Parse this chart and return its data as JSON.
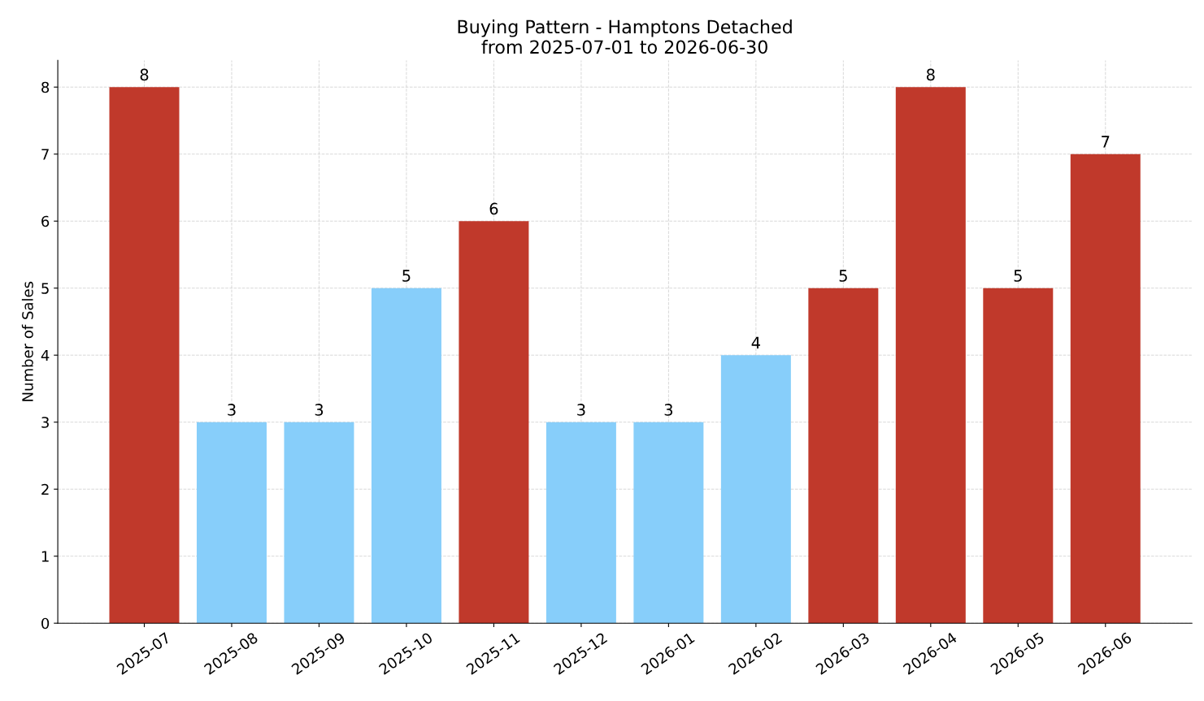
{
  "chart_data": {
    "type": "bar",
    "title": "Buying Pattern - Hamptons Detached\nfrom 2025-07-01 to 2026-06-30",
    "ylabel": "Number of Sales",
    "categories": [
      "2025-07",
      "2025-08",
      "2025-09",
      "2025-10",
      "2025-11",
      "2025-12",
      "2026-01",
      "2026-02",
      "2026-03",
      "2026-04",
      "2026-05",
      "2026-06"
    ],
    "values": [
      8,
      3,
      3,
      5,
      6,
      3,
      3,
      4,
      5,
      8,
      5,
      7
    ],
    "colors": [
      "#c0392b",
      "#87cefa",
      "#87cefa",
      "#87cefa",
      "#c0392b",
      "#87cefa",
      "#87cefa",
      "#87cefa",
      "#c0392b",
      "#c0392b",
      "#c0392b",
      "#c0392b"
    ],
    "ylim": [
      0,
      8.4
    ],
    "yticks": [
      0,
      1,
      2,
      3,
      4,
      5,
      6,
      7,
      8
    ],
    "grid": true,
    "data_labels": true
  }
}
